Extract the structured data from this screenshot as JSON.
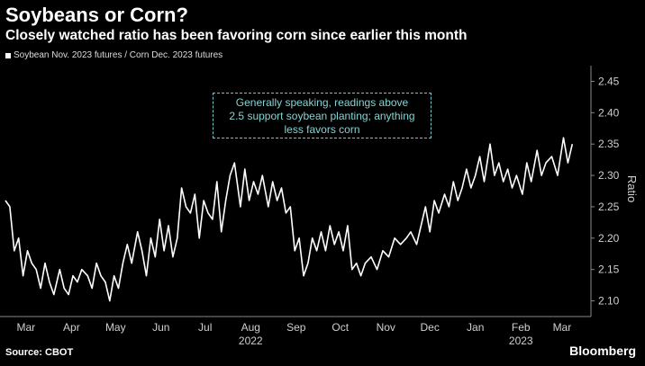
{
  "title": "Soybeans or Corn?",
  "subtitle": "Closely watched ratio has been favoring corn since earlier this month",
  "source": "Source: CBOT",
  "brand": "Bloomberg",
  "colors": {
    "background": "#000000",
    "line": "#ffffff",
    "annotation": "#86d3d3",
    "text": "#ffffff"
  },
  "chart_data": {
    "type": "line",
    "ylabel": "Ratio",
    "ylim": [
      2.075,
      2.475
    ],
    "yticks": [
      2.1,
      2.15,
      2.2,
      2.25,
      2.3,
      2.35,
      2.4,
      2.45
    ],
    "ytick_labels": [
      "2.10",
      "2.15",
      "2.20",
      "2.25",
      "2.30",
      "2.35",
      "2.40",
      "2.45"
    ],
    "xlim": [
      "2022-03-01",
      "2023-03-31"
    ],
    "xticks": [
      {
        "label": "Mar",
        "date": "2022-03-15"
      },
      {
        "label": "Apr",
        "date": "2022-04-15"
      },
      {
        "label": "May",
        "date": "2022-05-15"
      },
      {
        "label": "Jun",
        "date": "2022-06-15"
      },
      {
        "label": "Jul",
        "date": "2022-07-15"
      },
      {
        "label": "Aug",
        "date": "2022-08-15"
      },
      {
        "label": "Sep",
        "date": "2022-09-15"
      },
      {
        "label": "Oct",
        "date": "2022-10-15"
      },
      {
        "label": "Nov",
        "date": "2022-11-15"
      },
      {
        "label": "Dec",
        "date": "2022-12-15"
      },
      {
        "label": "Jan",
        "date": "2023-01-15"
      },
      {
        "label": "Feb",
        "date": "2023-02-15"
      },
      {
        "label": "Mar",
        "date": "2023-03-15"
      }
    ],
    "year_labels": [
      {
        "label": "2022",
        "date": "2022-08-15"
      },
      {
        "label": "2023",
        "date": "2023-02-15"
      }
    ],
    "legend": "Soybean Nov. 2023 futures / Corn Dec. 2023 futures",
    "legend_position": "top-left",
    "annotation": [
      "Generally speaking, readings above",
      "2.5 support soybean planting; anything",
      "less favors corn"
    ],
    "grid": false,
    "series": [
      {
        "name": "Soybean Nov. 2023 futures / Corn Dec. 2023 futures",
        "x": [
          "2022-03-01",
          "2022-03-04",
          "2022-03-07",
          "2022-03-10",
          "2022-03-13",
          "2022-03-16",
          "2022-03-19",
          "2022-03-22",
          "2022-03-25",
          "2022-03-28",
          "2022-03-31",
          "2022-04-03",
          "2022-04-07",
          "2022-04-10",
          "2022-04-13",
          "2022-04-16",
          "2022-04-19",
          "2022-04-22",
          "2022-04-26",
          "2022-04-29",
          "2022-05-02",
          "2022-05-05",
          "2022-05-08",
          "2022-05-11",
          "2022-05-14",
          "2022-05-17",
          "2022-05-20",
          "2022-05-23",
          "2022-05-26",
          "2022-05-30",
          "2022-06-02",
          "2022-06-05",
          "2022-06-08",
          "2022-06-11",
          "2022-06-14",
          "2022-06-17",
          "2022-06-20",
          "2022-06-23",
          "2022-06-26",
          "2022-06-29",
          "2022-07-02",
          "2022-07-05",
          "2022-07-08",
          "2022-07-11",
          "2022-07-14",
          "2022-07-17",
          "2022-07-20",
          "2022-07-23",
          "2022-07-26",
          "2022-07-29",
          "2022-08-01",
          "2022-08-04",
          "2022-08-08",
          "2022-08-11",
          "2022-08-14",
          "2022-08-17",
          "2022-08-20",
          "2022-08-23",
          "2022-08-27",
          "2022-08-30",
          "2022-09-02",
          "2022-09-05",
          "2022-09-08",
          "2022-09-11",
          "2022-09-14",
          "2022-09-17",
          "2022-09-20",
          "2022-09-23",
          "2022-09-26",
          "2022-09-29",
          "2022-10-02",
          "2022-10-05",
          "2022-10-08",
          "2022-10-11",
          "2022-10-14",
          "2022-10-17",
          "2022-10-20",
          "2022-10-23",
          "2022-10-26",
          "2022-10-29",
          "2022-11-01",
          "2022-11-05",
          "2022-11-09",
          "2022-11-13",
          "2022-11-17",
          "2022-11-21",
          "2022-11-25",
          "2022-11-29",
          "2022-12-02",
          "2022-12-06",
          "2022-12-09",
          "2022-12-12",
          "2022-12-15",
          "2022-12-18",
          "2022-12-21",
          "2022-12-25",
          "2022-12-28",
          "2022-12-31",
          "2023-01-03",
          "2023-01-06",
          "2023-01-09",
          "2023-01-12",
          "2023-01-15",
          "2023-01-18",
          "2023-01-21",
          "2023-01-25",
          "2023-01-28",
          "2023-01-31",
          "2023-02-03",
          "2023-02-06",
          "2023-02-09",
          "2023-02-12",
          "2023-02-16",
          "2023-02-19",
          "2023-02-22",
          "2023-02-26",
          "2023-03-01",
          "2023-03-04",
          "2023-03-08",
          "2023-03-12",
          "2023-03-16",
          "2023-03-19",
          "2023-03-22"
        ],
        "values": [
          2.26,
          2.25,
          2.18,
          2.2,
          2.14,
          2.18,
          2.16,
          2.15,
          2.12,
          2.16,
          2.13,
          2.11,
          2.15,
          2.12,
          2.11,
          2.14,
          2.13,
          2.15,
          2.14,
          2.12,
          2.16,
          2.14,
          2.13,
          2.1,
          2.14,
          2.12,
          2.16,
          2.19,
          2.16,
          2.21,
          2.18,
          2.14,
          2.2,
          2.17,
          2.23,
          2.18,
          2.22,
          2.17,
          2.2,
          2.28,
          2.25,
          2.24,
          2.27,
          2.2,
          2.26,
          2.24,
          2.23,
          2.29,
          2.21,
          2.26,
          2.3,
          2.32,
          2.25,
          2.31,
          2.26,
          2.29,
          2.27,
          2.3,
          2.25,
          2.29,
          2.26,
          2.28,
          2.24,
          2.25,
          2.18,
          2.2,
          2.14,
          2.16,
          2.2,
          2.18,
          2.21,
          2.18,
          2.22,
          2.19,
          2.21,
          2.18,
          2.22,
          2.15,
          2.16,
          2.14,
          2.16,
          2.17,
          2.15,
          2.18,
          2.17,
          2.2,
          2.19,
          2.2,
          2.21,
          2.19,
          2.22,
          2.25,
          2.21,
          2.26,
          2.24,
          2.27,
          2.25,
          2.29,
          2.26,
          2.28,
          2.31,
          2.28,
          2.3,
          2.33,
          2.29,
          2.35,
          2.3,
          2.32,
          2.29,
          2.31,
          2.28,
          2.3,
          2.27,
          2.32,
          2.29,
          2.34,
          2.3,
          2.32,
          2.33,
          2.3,
          2.36,
          2.32,
          2.35
        ]
      }
    ]
  }
}
